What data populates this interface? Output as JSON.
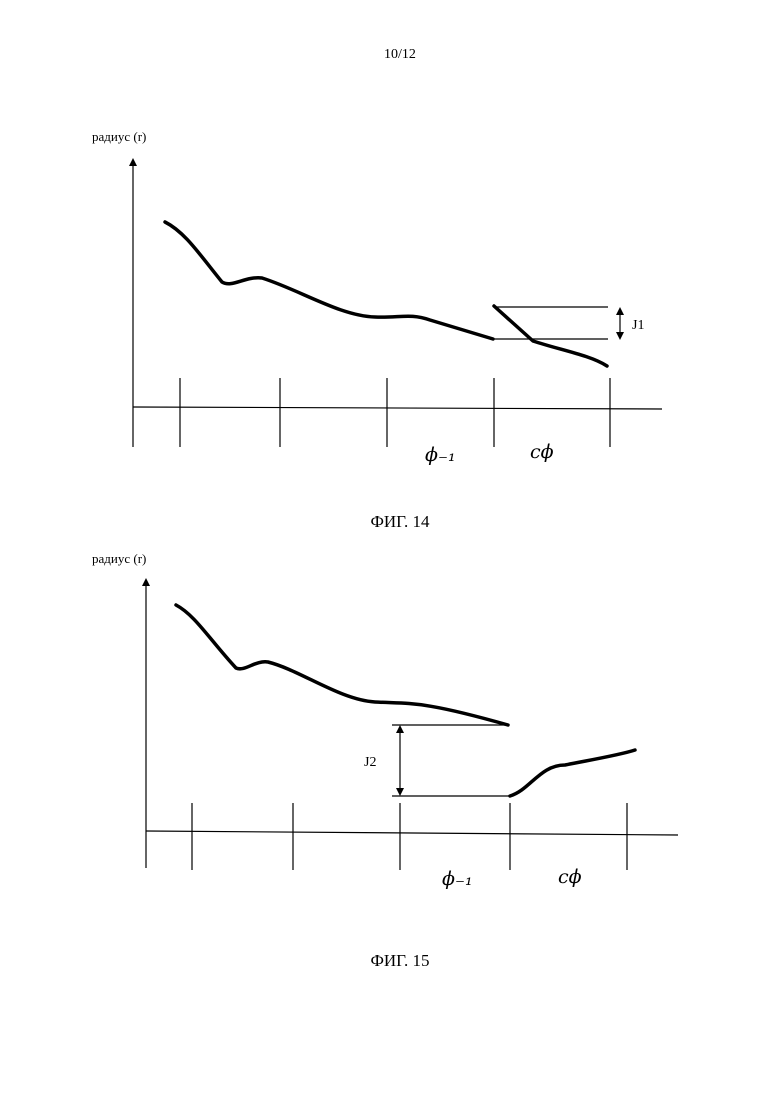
{
  "header": {
    "page_number": "10/12"
  },
  "figures": [
    {
      "axis_label": "радиус (r)",
      "x_labels": [
        "ϕ₋₁",
        "cϕ"
      ],
      "jump_label": "J1",
      "caption": "ФИГ. 14"
    },
    {
      "axis_label": "радиус (r)",
      "x_labels": [
        "ϕ₋₁",
        "cϕ"
      ],
      "jump_label": "J2",
      "caption": "ФИГ. 15"
    }
  ]
}
